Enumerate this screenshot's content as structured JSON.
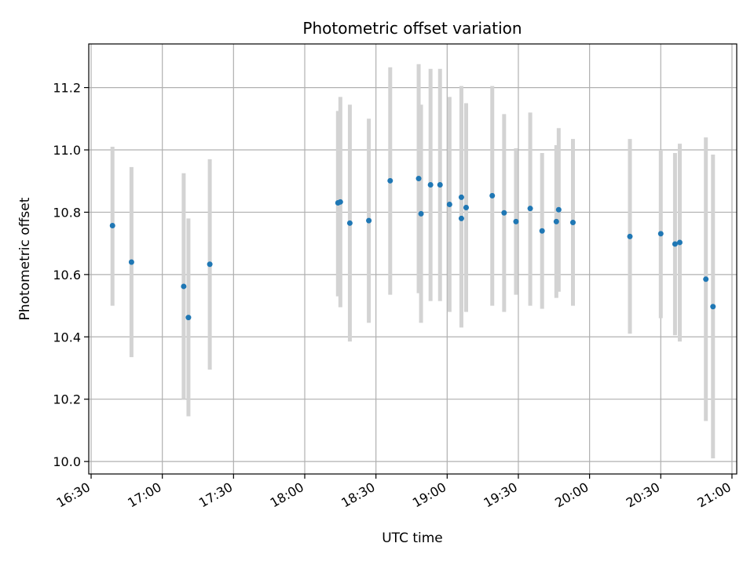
{
  "chart_data": {
    "type": "scatter",
    "title": "Photometric offset variation",
    "xlabel": "UTC time",
    "ylabel": "Photometric offset",
    "x_ticks": [
      "16:30",
      "17:00",
      "17:30",
      "18:00",
      "18:30",
      "19:00",
      "19:30",
      "20:00",
      "20:30",
      "21:00"
    ],
    "y_ticks": [
      "10.0",
      "10.2",
      "10.4",
      "10.6",
      "10.8",
      "11.0",
      "11.2"
    ],
    "xlim": [
      "16:29",
      "21:02"
    ],
    "ylim": [
      9.96,
      11.34
    ],
    "grid": true,
    "colors": {
      "point": "#1f77b4",
      "errorbar": "#d3d3d3",
      "grid": "#b0b0b0"
    },
    "points": [
      {
        "x": "16:39",
        "y": 10.757,
        "lo": 10.5,
        "hi": 11.01
      },
      {
        "x": "16:47",
        "y": 10.64,
        "lo": 10.335,
        "hi": 10.945
      },
      {
        "x": "17:09",
        "y": 10.562,
        "lo": 10.2,
        "hi": 10.925
      },
      {
        "x": "17:11",
        "y": 10.462,
        "lo": 10.145,
        "hi": 10.78
      },
      {
        "x": "17:20",
        "y": 10.633,
        "lo": 10.295,
        "hi": 10.97
      },
      {
        "x": "18:14",
        "y": 10.83,
        "lo": 10.53,
        "hi": 11.125
      },
      {
        "x": "18:15",
        "y": 10.833,
        "lo": 10.495,
        "hi": 11.17
      },
      {
        "x": "18:19",
        "y": 10.765,
        "lo": 10.385,
        "hi": 11.145
      },
      {
        "x": "18:27",
        "y": 10.773,
        "lo": 10.445,
        "hi": 11.1
      },
      {
        "x": "18:36",
        "y": 10.901,
        "lo": 10.535,
        "hi": 11.265
      },
      {
        "x": "18:48",
        "y": 10.908,
        "lo": 10.54,
        "hi": 11.275
      },
      {
        "x": "18:49",
        "y": 10.795,
        "lo": 10.445,
        "hi": 11.145
      },
      {
        "x": "18:53",
        "y": 10.888,
        "lo": 10.515,
        "hi": 11.26
      },
      {
        "x": "18:57",
        "y": 10.888,
        "lo": 10.515,
        "hi": 11.26
      },
      {
        "x": "19:01",
        "y": 10.825,
        "lo": 10.48,
        "hi": 11.17
      },
      {
        "x": "19:06",
        "y": 10.848,
        "lo": 10.49,
        "hi": 11.205
      },
      {
        "x": "19:06",
        "y": 10.78,
        "lo": 10.43,
        "hi": 11.13
      },
      {
        "x": "19:08",
        "y": 10.815,
        "lo": 10.48,
        "hi": 11.15
      },
      {
        "x": "19:19",
        "y": 10.853,
        "lo": 10.5,
        "hi": 11.205
      },
      {
        "x": "19:24",
        "y": 10.798,
        "lo": 10.48,
        "hi": 11.115
      },
      {
        "x": "19:29",
        "y": 10.77,
        "lo": 10.535,
        "hi": 11.005
      },
      {
        "x": "19:35",
        "y": 10.812,
        "lo": 10.5,
        "hi": 11.12
      },
      {
        "x": "19:40",
        "y": 10.74,
        "lo": 10.49,
        "hi": 10.99
      },
      {
        "x": "19:46",
        "y": 10.77,
        "lo": 10.525,
        "hi": 11.015
      },
      {
        "x": "19:47",
        "y": 10.808,
        "lo": 10.545,
        "hi": 11.07
      },
      {
        "x": "19:53",
        "y": 10.767,
        "lo": 10.5,
        "hi": 11.035
      },
      {
        "x": "20:17",
        "y": 10.722,
        "lo": 10.41,
        "hi": 11.035
      },
      {
        "x": "20:30",
        "y": 10.731,
        "lo": 10.46,
        "hi": 11.0
      },
      {
        "x": "20:36",
        "y": 10.698,
        "lo": 10.405,
        "hi": 10.99
      },
      {
        "x": "20:38",
        "y": 10.703,
        "lo": 10.385,
        "hi": 11.02
      },
      {
        "x": "20:49",
        "y": 10.585,
        "lo": 10.13,
        "hi": 11.04
      },
      {
        "x": "20:52",
        "y": 10.497,
        "lo": 10.01,
        "hi": 10.985
      }
    ]
  }
}
